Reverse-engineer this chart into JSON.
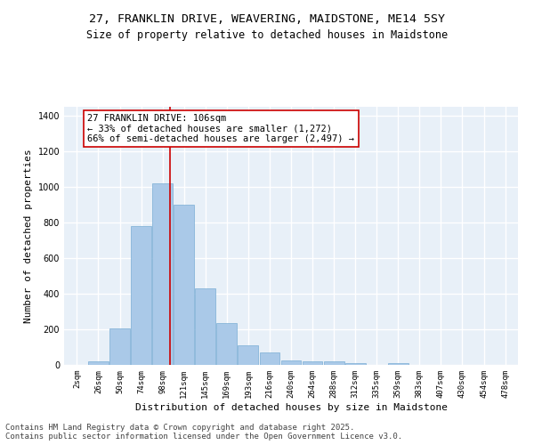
{
  "title_line1": "27, FRANKLIN DRIVE, WEAVERING, MAIDSTONE, ME14 5SY",
  "title_line2": "Size of property relative to detached houses in Maidstone",
  "xlabel": "Distribution of detached houses by size in Maidstone",
  "ylabel": "Number of detached properties",
  "categories": [
    "2sqm",
    "26sqm",
    "50sqm",
    "74sqm",
    "98sqm",
    "121sqm",
    "145sqm",
    "169sqm",
    "193sqm",
    "216sqm",
    "240sqm",
    "264sqm",
    "288sqm",
    "312sqm",
    "335sqm",
    "359sqm",
    "383sqm",
    "407sqm",
    "430sqm",
    "454sqm",
    "478sqm"
  ],
  "values": [
    0,
    20,
    205,
    778,
    1020,
    898,
    430,
    235,
    110,
    68,
    25,
    22,
    18,
    10,
    0,
    10,
    0,
    0,
    0,
    0,
    0
  ],
  "bar_color": "#aac9e8",
  "bar_edge_color": "#7aadd4",
  "vline_color": "#cc0000",
  "annotation_line1": "27 FRANKLIN DRIVE: 106sqm",
  "annotation_line2": "← 33% of detached houses are smaller (1,272)",
  "annotation_line3": "66% of semi-detached houses are larger (2,497) →",
  "annotation_box_color": "#cc0000",
  "annotation_box_facecolor": "white",
  "ylim": [
    0,
    1450
  ],
  "yticks": [
    0,
    200,
    400,
    600,
    800,
    1000,
    1200,
    1400
  ],
  "background_color": "#e8f0f8",
  "grid_color": "white",
  "footer_line1": "Contains HM Land Registry data © Crown copyright and database right 2025.",
  "footer_line2": "Contains public sector information licensed under the Open Government Licence v3.0.",
  "title_fontsize": 9.5,
  "subtitle_fontsize": 8.5,
  "axis_label_fontsize": 8,
  "tick_fontsize": 6.5,
  "annotation_fontsize": 7.5,
  "footer_fontsize": 6.5
}
